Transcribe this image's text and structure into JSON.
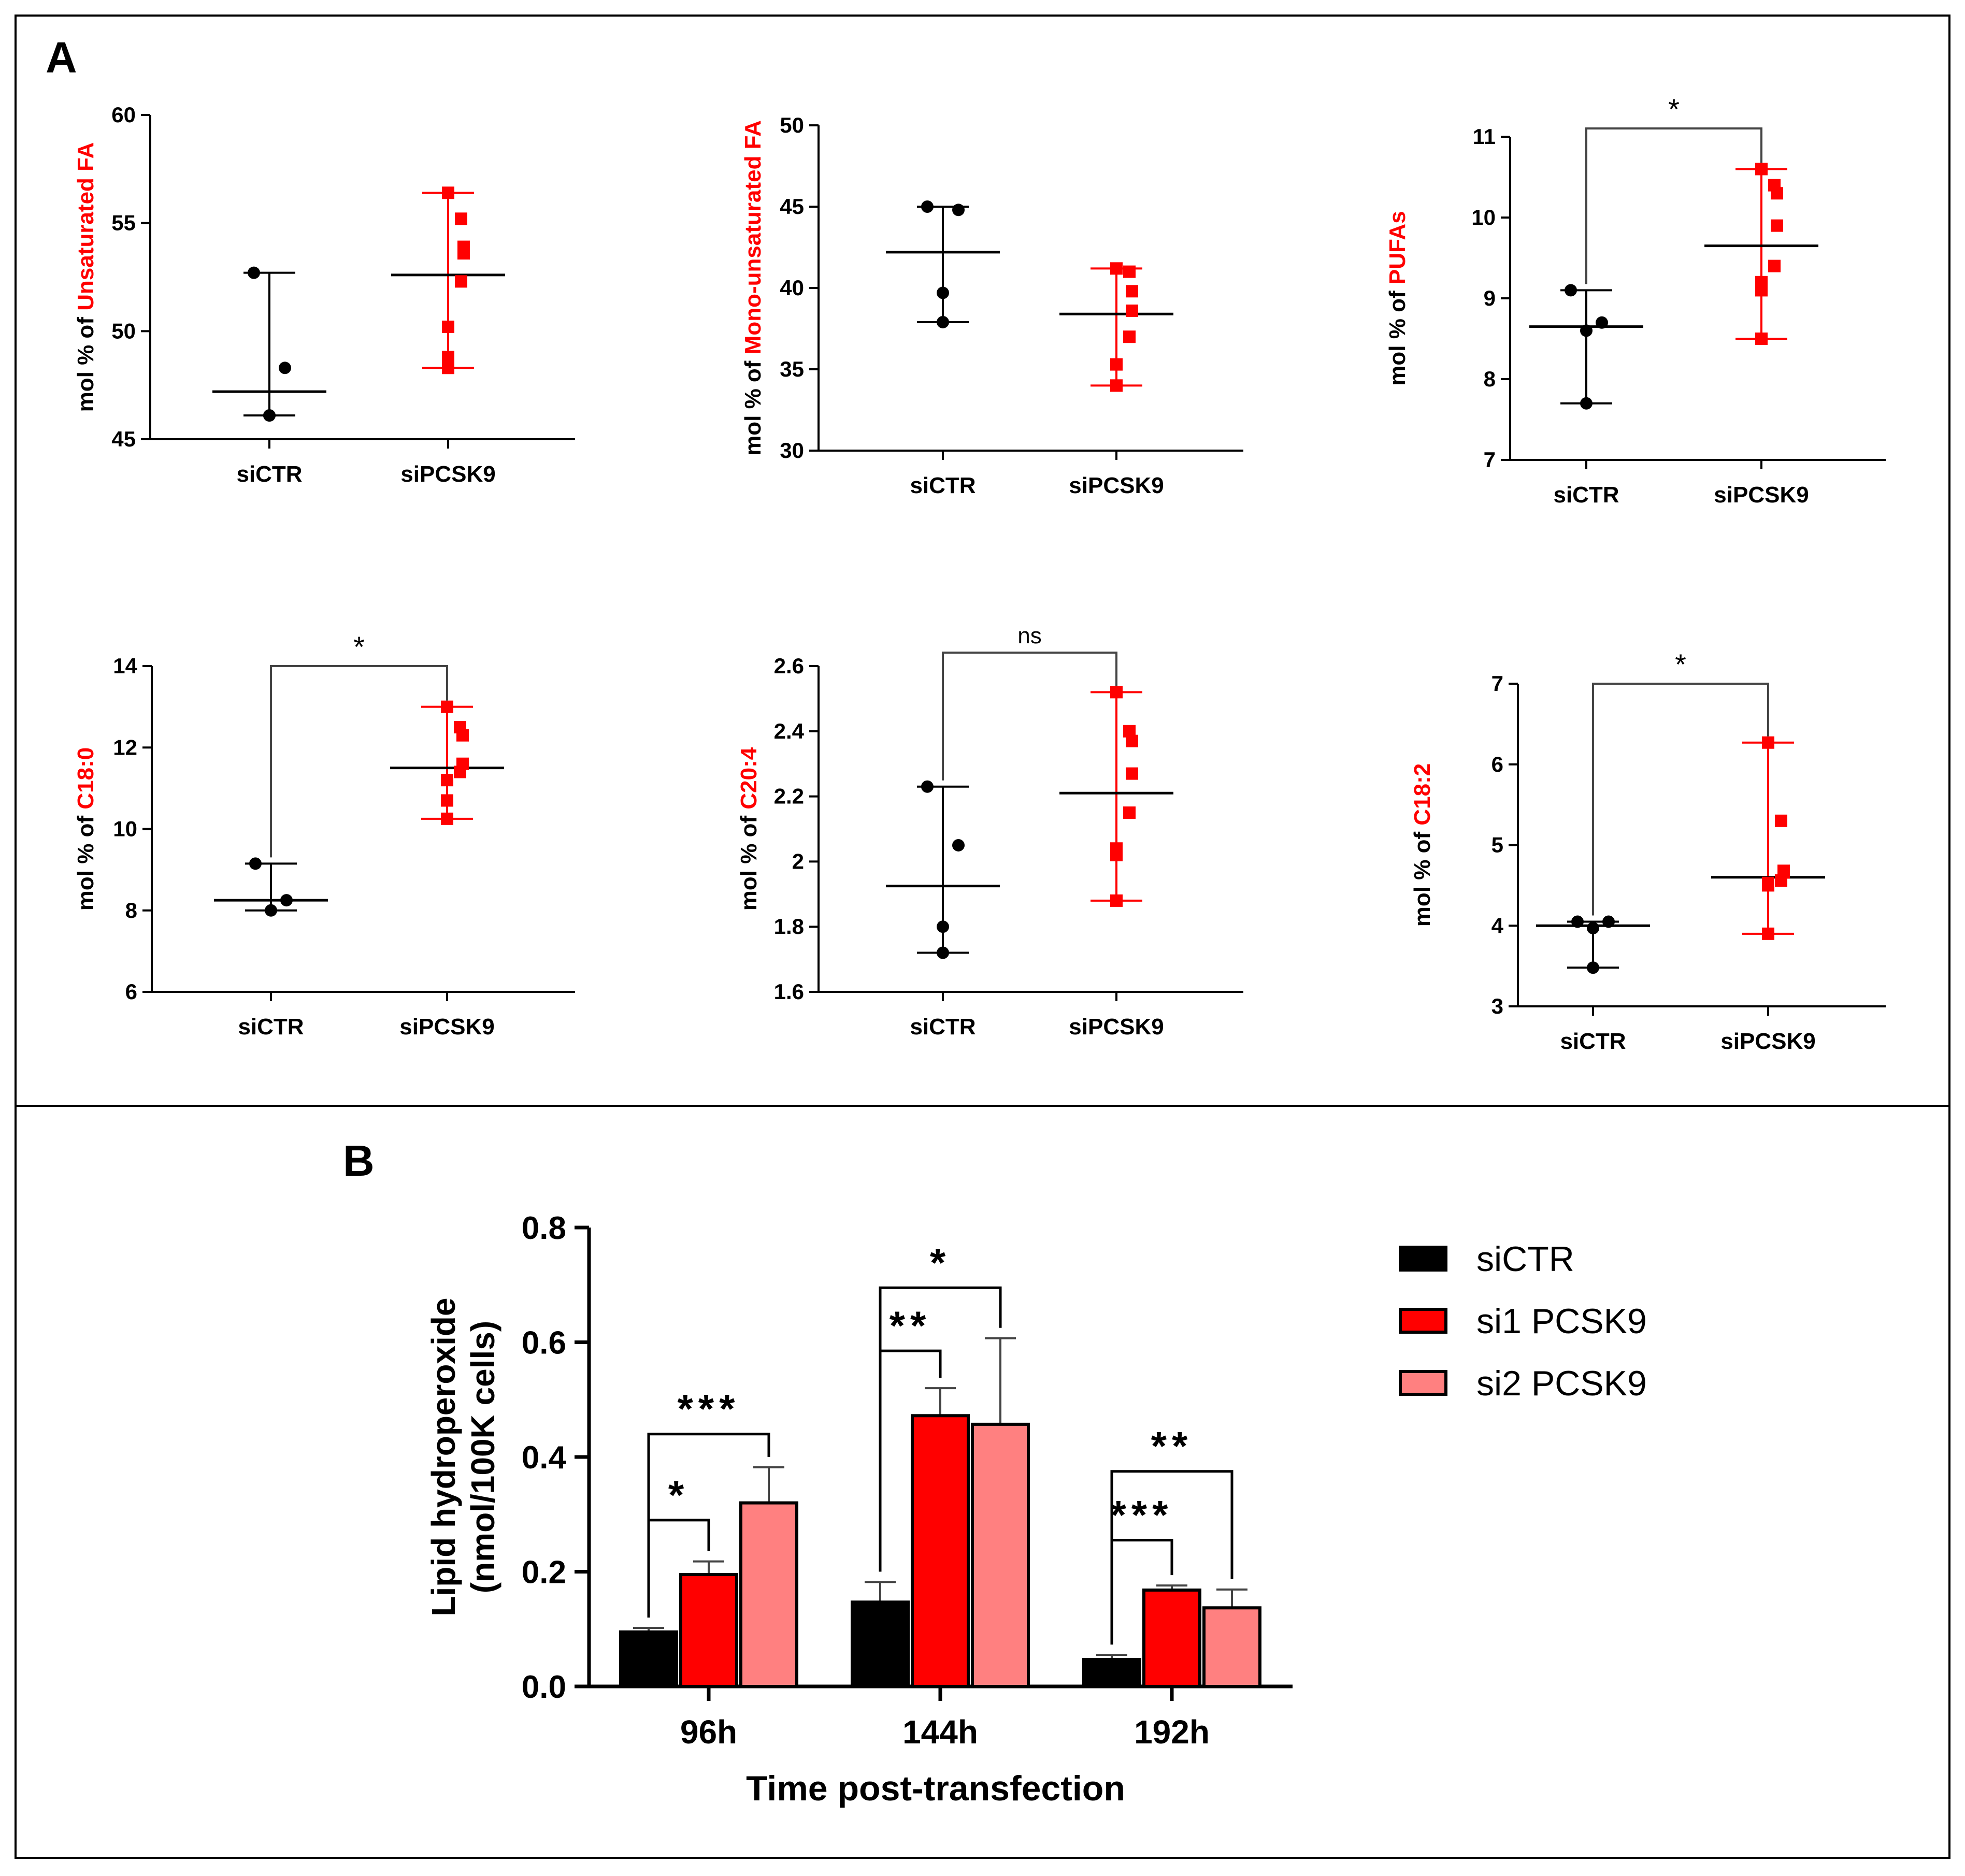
{
  "panel_a_label": "A",
  "panel_b_label": "B",
  "chart_data": [
    {
      "id": "unsat",
      "type": "scatter",
      "panel": "A",
      "ylabel_prefix": "mol % of ",
      "ylabel_highlight": "Unsaturated FA",
      "categories": [
        "siCTR",
        "siPCSK9"
      ],
      "ylim": [
        45,
        60
      ],
      "yticks": [
        45,
        50,
        55,
        60
      ],
      "series": [
        {
          "name": "siCTR",
          "points": [
            52.7,
            48.3,
            46.1,
            46.1
          ],
          "mean": 47.2,
          "range": [
            46.1,
            52.7
          ]
        },
        {
          "name": "siPCSK9",
          "points": [
            56.4,
            55.2,
            53.9,
            53.6,
            52.3,
            50.2,
            48.8,
            48.3
          ],
          "mean": 52.6,
          "range": [
            48.3,
            56.4
          ]
        }
      ],
      "annotation": null
    },
    {
      "id": "mono",
      "type": "scatter",
      "panel": "A",
      "ylabel_prefix": "mol % of ",
      "ylabel_highlight": "Mono-unsaturated FA",
      "categories": [
        "siCTR",
        "siPCSK9"
      ],
      "ylim": [
        30,
        50
      ],
      "yticks": [
        30,
        35,
        40,
        45,
        50
      ],
      "series": [
        {
          "name": "siCTR",
          "points": [
            45.0,
            44.8,
            39.7,
            37.9
          ],
          "mean": 42.2,
          "range": [
            37.9,
            45.0
          ]
        },
        {
          "name": "siPCSK9",
          "points": [
            41.2,
            41.0,
            39.8,
            38.6,
            37.0,
            35.3,
            34.0,
            34.0
          ],
          "mean": 38.4,
          "range": [
            34.0,
            41.2
          ]
        }
      ],
      "annotation": null
    },
    {
      "id": "pufa",
      "type": "scatter",
      "panel": "A",
      "ylabel_prefix": "mol % of ",
      "ylabel_highlight": "PUFAs",
      "categories": [
        "siCTR",
        "siPCSK9"
      ],
      "ylim": [
        7,
        11
      ],
      "yticks": [
        7,
        8,
        9,
        10,
        11
      ],
      "series": [
        {
          "name": "siCTR",
          "points": [
            9.1,
            8.7,
            8.6,
            7.7
          ],
          "mean": 8.65,
          "range": [
            7.7,
            9.1
          ]
        },
        {
          "name": "siPCSK9",
          "points": [
            10.6,
            10.4,
            10.3,
            9.9,
            9.4,
            9.2,
            9.1,
            8.5
          ],
          "mean": 9.65,
          "range": [
            8.5,
            10.6
          ]
        }
      ],
      "annotation": "*"
    },
    {
      "id": "c180",
      "type": "scatter",
      "panel": "A",
      "ylabel_prefix": "mol % of ",
      "ylabel_highlight": "C18:0",
      "categories": [
        "siCTR",
        "siPCSK9"
      ],
      "ylim": [
        6,
        14
      ],
      "yticks": [
        6,
        8,
        10,
        12,
        14
      ],
      "series": [
        {
          "name": "siCTR",
          "points": [
            9.15,
            8.25,
            8.0
          ],
          "mean": 8.25,
          "range": [
            8.0,
            9.15
          ]
        },
        {
          "name": "siPCSK9",
          "points": [
            13.0,
            12.5,
            12.3,
            11.6,
            11.4,
            11.2,
            10.7,
            10.25
          ],
          "mean": 11.5,
          "range": [
            10.25,
            13.0
          ]
        }
      ],
      "annotation": "*"
    },
    {
      "id": "c204",
      "type": "scatter",
      "panel": "A",
      "ylabel_prefix": "mol % of ",
      "ylabel_highlight": "C20:4",
      "categories": [
        "siCTR",
        "siPCSK9"
      ],
      "ylim": [
        1.6,
        2.6
      ],
      "yticks": [
        1.6,
        1.8,
        2.0,
        2.2,
        2.4,
        2.6
      ],
      "series": [
        {
          "name": "siCTR",
          "points": [
            2.23,
            2.05,
            1.8,
            1.72
          ],
          "mean": 1.925,
          "range": [
            1.72,
            2.23
          ]
        },
        {
          "name": "siPCSK9",
          "points": [
            2.52,
            2.4,
            2.37,
            2.27,
            2.15,
            2.04,
            2.02,
            1.88
          ],
          "mean": 2.21,
          "range": [
            1.88,
            2.52
          ]
        }
      ],
      "annotation": "ns"
    },
    {
      "id": "c182",
      "type": "scatter",
      "panel": "A",
      "ylabel_prefix": "mol % of ",
      "ylabel_highlight": "C18:2",
      "categories": [
        "siCTR",
        "siPCSK9"
      ],
      "ylim": [
        3,
        7
      ],
      "yticks": [
        3,
        4,
        5,
        6,
        7
      ],
      "series": [
        {
          "name": "siCTR",
          "points": [
            4.05,
            4.05,
            3.97,
            3.48
          ],
          "mean": 4.0,
          "range": [
            3.48,
            4.05
          ]
        },
        {
          "name": "siPCSK9",
          "points": [
            6.27,
            5.3,
            4.68,
            4.66,
            4.56,
            4.53,
            4.5,
            3.9
          ],
          "mean": 4.6,
          "range": [
            3.9,
            6.27
          ]
        }
      ],
      "annotation": "*"
    },
    {
      "id": "lipid",
      "type": "bar",
      "panel": "B",
      "ylabel_line1": "Lipid hydroperoxide",
      "ylabel_line2": "(nmol/100K cells)",
      "xlabel": "Time post-transfection",
      "categories": [
        "96h",
        "144h",
        "192h"
      ],
      "ylim": [
        0,
        0.8
      ],
      "yticks": [
        "0.0",
        "0.2",
        "0.4",
        "0.6",
        "0.8"
      ],
      "series": [
        {
          "name": "siCTR",
          "color": "#000000",
          "values": [
            0.095,
            0.147,
            0.047
          ],
          "errors": [
            0.007,
            0.035,
            0.008
          ]
        },
        {
          "name": "si1 PCSK9",
          "color": "#ff0000",
          "values": [
            0.195,
            0.472,
            0.168
          ],
          "errors": [
            0.023,
            0.048,
            0.008
          ]
        },
        {
          "name": "si2 PCSK9",
          "color": "#ff8080",
          "values": [
            0.32,
            0.457,
            0.137
          ],
          "errors": [
            0.062,
            0.15,
            0.032
          ]
        }
      ],
      "significance": [
        {
          "group": 0,
          "from": 0,
          "to": 1,
          "label": "*",
          "y": 0.29
        },
        {
          "group": 0,
          "from": 0,
          "to": 2,
          "label": "***",
          "y": 0.44
        },
        {
          "group": 1,
          "from": 0,
          "to": 1,
          "label": "**",
          "y": 0.585
        },
        {
          "group": 1,
          "from": 0,
          "to": 2,
          "label": "*",
          "y": 0.695
        },
        {
          "group": 2,
          "from": 0,
          "to": 1,
          "label": "***",
          "y": 0.255
        },
        {
          "group": 2,
          "from": 0,
          "to": 2,
          "label": "**",
          "y": 0.375
        }
      ]
    }
  ],
  "colors": {
    "ctr": "#000000",
    "pcsk9": "#ff0000",
    "light": "#ff8080",
    "bracket": "#444444"
  }
}
